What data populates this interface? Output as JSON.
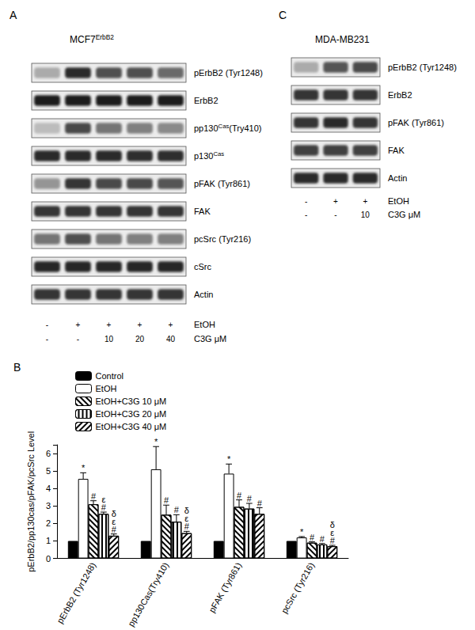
{
  "panel_a": {
    "label": "A",
    "title": {
      "text": "MCF7ErbB2",
      "sup": "ErbB2"
    },
    "blots": [
      {
        "label": {
          "text": "pErbB2 (Tyr1248)"
        },
        "band_intensity": [
          0.3,
          0.9,
          0.72,
          0.72,
          0.6
        ]
      },
      {
        "label": {
          "text": "ErbB2"
        },
        "band_intensity": [
          0.95,
          0.95,
          0.95,
          0.95,
          0.95
        ]
      },
      {
        "label": {
          "text": "pp130Cas(Try410)",
          "sup": "Cas"
        },
        "band_intensity": [
          0.22,
          0.75,
          0.55,
          0.5,
          0.45
        ]
      },
      {
        "label": {
          "text": "p130Cas",
          "sup": "Cas"
        },
        "band_intensity": [
          0.9,
          0.9,
          0.9,
          0.88,
          0.88
        ]
      },
      {
        "label": {
          "text": "pFAK (Tyr861)"
        },
        "band_intensity": [
          0.4,
          0.85,
          0.75,
          0.75,
          0.7
        ]
      },
      {
        "label": {
          "text": "FAK"
        },
        "band_intensity": [
          0.85,
          0.85,
          0.85,
          0.85,
          0.85
        ]
      },
      {
        "label": {
          "text": "pcSrc (Tyr216)"
        },
        "band_intensity": [
          0.55,
          0.72,
          0.55,
          0.5,
          0.5
        ]
      },
      {
        "label": {
          "text": "cSrc"
        },
        "band_intensity": [
          0.92,
          0.92,
          0.92,
          0.92,
          0.92
        ]
      },
      {
        "label": {
          "text": "Actin"
        },
        "band_intensity": [
          0.85,
          0.85,
          0.85,
          0.85,
          0.85
        ]
      }
    ],
    "treatments": [
      {
        "label": "EtOH",
        "lanes": [
          "-",
          "+",
          "+",
          "+",
          "+"
        ]
      },
      {
        "label": "C3G  μM",
        "lanes": [
          "-",
          "-",
          "10",
          "20",
          "40"
        ]
      }
    ]
  },
  "panel_c": {
    "label": "C",
    "title": {
      "text": "MDA-MB231"
    },
    "blots": [
      {
        "label": {
          "text": "pErbB2 (Tyr1248)"
        },
        "band_intensity": [
          0.3,
          0.7,
          0.75
        ]
      },
      {
        "label": {
          "text": "ErbB2"
        },
        "band_intensity": [
          0.85,
          0.85,
          0.85
        ]
      },
      {
        "label": {
          "text": "pFAK (Tyr861)"
        },
        "band_intensity": [
          0.85,
          0.9,
          0.85
        ]
      },
      {
        "label": {
          "text": "FAK"
        },
        "band_intensity": [
          0.8,
          0.8,
          0.8
        ]
      },
      {
        "label": {
          "text": "Actin"
        },
        "band_intensity": [
          0.9,
          0.9,
          0.9
        ]
      }
    ],
    "treatments": [
      {
        "label": "EtOH",
        "lanes": [
          "-",
          "+",
          "+"
        ]
      },
      {
        "label": "C3G  μM",
        "lanes": [
          "-",
          "-",
          "10"
        ]
      }
    ]
  },
  "chart_data": {
    "panel_label": "B",
    "type": "bar",
    "y_label": "pErbB2/pp130cas/pFAK/pcSrc Level",
    "categories": [
      "pErbB2 (Tyr1248)",
      "pp130Cas(Try410)",
      "pFAK (Tyr861)",
      "pcSrc (Tyr216)"
    ],
    "ylim": [
      0,
      6.5
    ],
    "yticks": [
      0,
      1,
      2,
      3,
      4,
      5,
      6
    ],
    "grid": false,
    "legend": "top-left",
    "series": [
      {
        "name": "Control",
        "color": "#000000",
        "marker": "solid",
        "values": [
          1,
          1,
          1,
          1
        ],
        "errors": [
          0,
          0,
          0,
          0
        ],
        "annotations": [
          [],
          [],
          [],
          []
        ]
      },
      {
        "name": "EtOH",
        "color": "#ffffff",
        "marker": "solid",
        "values": [
          4.55,
          5.1,
          4.85,
          1.2
        ],
        "errors": [
          0.35,
          1.3,
          0.55,
          0.05
        ],
        "annotations": [
          [
            "*"
          ],
          [
            "*"
          ],
          [
            "*"
          ],
          [
            "*"
          ]
        ]
      },
      {
        "name": "EtOH+C3G 10 μM",
        "color": "#ffffff",
        "marker": "diagonal",
        "values": [
          3.1,
          2.5,
          2.95,
          0.9
        ],
        "errors": [
          0.2,
          0.55,
          0.4,
          0.05
        ],
        "annotations": [
          [
            "#"
          ],
          [
            "#"
          ],
          [
            "#"
          ],
          [
            "#"
          ]
        ]
      },
      {
        "name": "EtOH+C3G 20 μM",
        "color": "#ffffff",
        "marker": "vertical",
        "values": [
          2.55,
          2.1,
          2.85,
          0.8
        ],
        "errors": [
          0.1,
          0.4,
          0.3,
          0.05
        ],
        "annotations": [
          [
            "ε",
            "#"
          ],
          [
            "#"
          ],
          [
            "#"
          ],
          [
            "#"
          ]
        ]
      },
      {
        "name": "EtOH+C3G 40 μM",
        "color": "#ffffff",
        "marker": "antidiagonal",
        "values": [
          1.3,
          1.45,
          2.55,
          0.7
        ],
        "errors": [
          0.1,
          0.1,
          0.35,
          0.05
        ],
        "annotations": [
          [
            "δ",
            "ε",
            "#"
          ],
          [
            "δ",
            "ε",
            "#"
          ],
          [
            "#"
          ],
          [
            "δ",
            "ε",
            "#"
          ]
        ]
      }
    ]
  }
}
